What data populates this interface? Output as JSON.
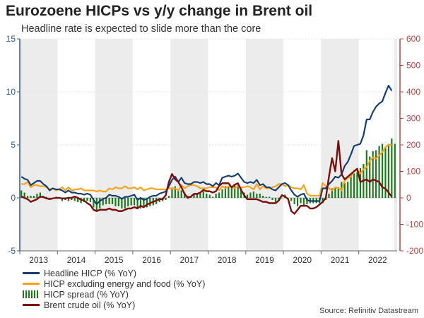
{
  "title": "Eurozoene HICPs vs y/y change in Brent oil",
  "subtitle": "Headline rate is expected to slide more than the core",
  "source": "Source: Refinitiv Datastream",
  "colors": {
    "headline": "#173e6d",
    "core": "#f7a21b",
    "spread": "#1f7a1f",
    "brent": "#7a0d0d",
    "left_axis": "#2f5d8a",
    "right_axis": "#b24848",
    "shade": "#ececec"
  },
  "chart_data": {
    "type": "line",
    "title": "Eurozoene HICPs vs y/y change in Brent oil",
    "x_start": "2013-01",
    "frequency": "monthly",
    "year_labels": [
      "2013",
      "2014",
      "2015",
      "2016",
      "2017",
      "2018",
      "2019",
      "2020",
      "2021",
      "2022"
    ],
    "shaded_years": [
      "2013",
      "2015",
      "2017",
      "2019",
      "2021"
    ],
    "left_axis": {
      "ylim": [
        -5,
        15
      ],
      "ticks": [
        -5,
        0,
        5,
        10,
        15
      ]
    },
    "right_axis": {
      "ylim": [
        -200,
        600
      ],
      "ticks": [
        -200,
        -100,
        0,
        100,
        200,
        300,
        400,
        500,
        600
      ]
    },
    "legend_position": "bottom-left",
    "series": [
      {
        "name": "Headline HICP (% YoY)",
        "axis": "left",
        "kind": "line",
        "values": [
          2.0,
          1.8,
          1.7,
          1.2,
          1.4,
          1.6,
          1.6,
          1.3,
          1.1,
          0.7,
          0.9,
          0.8,
          0.8,
          0.7,
          0.5,
          0.7,
          0.5,
          0.5,
          0.4,
          0.4,
          0.3,
          0.4,
          0.3,
          -0.2,
          -0.6,
          -0.3,
          -0.1,
          0.0,
          0.3,
          0.2,
          0.2,
          0.1,
          -0.1,
          0.1,
          0.1,
          0.2,
          0.3,
          -0.2,
          0.0,
          -0.2,
          -0.1,
          0.1,
          0.2,
          0.2,
          0.4,
          0.5,
          0.6,
          1.1,
          1.7,
          2.0,
          1.5,
          1.9,
          1.4,
          1.3,
          1.3,
          1.5,
          1.5,
          1.4,
          1.5,
          1.3,
          1.3,
          1.1,
          1.4,
          1.2,
          1.9,
          2.0,
          2.1,
          2.0,
          2.1,
          2.3,
          1.9,
          1.5,
          1.4,
          1.5,
          1.4,
          1.7,
          1.2,
          1.3,
          1.0,
          1.0,
          0.8,
          0.7,
          1.0,
          1.3,
          1.4,
          1.2,
          0.7,
          0.3,
          0.1,
          0.3,
          0.4,
          -0.2,
          -0.3,
          -0.3,
          -0.3,
          -0.3,
          0.9,
          0.9,
          1.3,
          1.6,
          2.0,
          1.9,
          2.2,
          3.0,
          3.4,
          4.1,
          4.9,
          5.0,
          5.1,
          5.9,
          7.4,
          7.4,
          8.1,
          8.6,
          8.9,
          9.1,
          9.9,
          10.6,
          10.1
        ]
      },
      {
        "name": "HICP excluding energy and food (% YoY)",
        "axis": "left",
        "kind": "line",
        "values": [
          1.3,
          1.3,
          1.5,
          1.0,
          1.2,
          1.2,
          1.1,
          1.1,
          1.0,
          0.8,
          0.9,
          0.7,
          0.8,
          1.0,
          0.7,
          1.0,
          0.7,
          0.8,
          0.8,
          0.9,
          0.7,
          0.7,
          0.7,
          0.7,
          0.6,
          0.7,
          0.6,
          0.6,
          0.9,
          0.8,
          1.0,
          0.9,
          0.9,
          1.1,
          0.9,
          0.9,
          1.0,
          0.8,
          1.0,
          0.7,
          0.8,
          0.9,
          0.9,
          0.8,
          0.8,
          0.8,
          0.8,
          0.9,
          0.9,
          0.9,
          0.7,
          1.2,
          0.9,
          1.1,
          1.2,
          1.2,
          1.1,
          0.9,
          0.9,
          0.9,
          1.0,
          1.0,
          1.0,
          0.7,
          1.1,
          0.9,
          1.1,
          1.0,
          0.9,
          1.1,
          1.0,
          1.0,
          1.1,
          1.0,
          0.8,
          1.3,
          0.8,
          1.1,
          0.9,
          0.9,
          1.0,
          1.1,
          1.3,
          1.3,
          1.1,
          1.2,
          1.0,
          0.9,
          0.9,
          0.8,
          1.2,
          0.4,
          0.2,
          0.2,
          0.2,
          0.2,
          1.4,
          1.1,
          0.9,
          0.7,
          1.0,
          0.9,
          0.7,
          1.6,
          1.9,
          2.0,
          2.6,
          2.6,
          2.3,
          2.7,
          2.9,
          3.5,
          3.8,
          3.7,
          4.0,
          4.3,
          4.8,
          5.0,
          5.0
        ]
      },
      {
        "name": "HICP spread (% YoY)",
        "axis": "left",
        "kind": "bar",
        "values": [
          0.7,
          0.5,
          0.2,
          0.2,
          0.2,
          0.4,
          0.5,
          0.2,
          0.1,
          -0.1,
          0.0,
          0.1,
          0.0,
          -0.3,
          -0.2,
          -0.3,
          -0.2,
          -0.3,
          -0.4,
          -0.5,
          -0.4,
          -0.3,
          -0.4,
          -0.9,
          -1.2,
          -1.0,
          -0.7,
          -0.6,
          -0.6,
          -0.6,
          -0.8,
          -0.8,
          -1.0,
          -1.0,
          -0.8,
          -0.7,
          -0.7,
          -1.0,
          -1.0,
          -0.9,
          -0.9,
          -0.8,
          -0.7,
          -0.6,
          -0.4,
          -0.3,
          -0.2,
          0.2,
          0.8,
          1.1,
          0.8,
          0.7,
          0.5,
          0.2,
          0.1,
          0.3,
          0.4,
          0.5,
          0.6,
          0.4,
          0.3,
          0.1,
          0.4,
          0.5,
          0.8,
          1.1,
          1.0,
          1.0,
          1.2,
          1.2,
          0.9,
          0.5,
          0.3,
          0.5,
          0.6,
          0.4,
          0.4,
          0.2,
          0.1,
          0.1,
          -0.2,
          -0.4,
          -0.3,
          0.0,
          0.3,
          0.0,
          -0.3,
          -0.6,
          -0.8,
          -0.5,
          -0.8,
          -0.6,
          -0.5,
          -0.5,
          -0.5,
          -0.5,
          -0.5,
          -0.2,
          0.4,
          0.9,
          1.0,
          1.0,
          1.5,
          1.4,
          1.5,
          2.1,
          2.3,
          2.4,
          2.8,
          3.2,
          4.5,
          3.9,
          4.4,
          4.5,
          4.9,
          5.1,
          4.8,
          5.1,
          5.6,
          5.1
        ]
      },
      {
        "name": "Brent crude oil (% YoY)",
        "axis": "right",
        "kind": "line",
        "values": [
          5,
          0,
          -5,
          -15,
          -10,
          -5,
          5,
          3,
          -2,
          -5,
          -2,
          0,
          0,
          -2,
          -2,
          0,
          0,
          5,
          0,
          -7,
          -10,
          -20,
          -27,
          -45,
          -50,
          -45,
          -45,
          -45,
          -40,
          -45,
          -45,
          -50,
          -50,
          -45,
          -40,
          -40,
          -35,
          -40,
          -30,
          -35,
          -25,
          -20,
          -15,
          -10,
          -5,
          -5,
          10,
          60,
          90,
          70,
          60,
          40,
          15,
          0,
          5,
          15,
          15,
          20,
          30,
          25,
          25,
          20,
          25,
          45,
          55,
          55,
          55,
          40,
          50,
          55,
          30,
          10,
          -5,
          -5,
          -5,
          -5,
          -10,
          -15,
          -15,
          -20,
          -20,
          -20,
          -10,
          10,
          5,
          -5,
          -50,
          -60,
          -45,
          -30,
          -30,
          -30,
          -40,
          -40,
          -35,
          -25,
          -15,
          0,
          80,
          150,
          100,
          215,
          90,
          70,
          80,
          90,
          100,
          110,
          60,
          65,
          70,
          60,
          70,
          65,
          60,
          40,
          35,
          20,
          5
        ]
      }
    ]
  },
  "legend": [
    "Headline HICP (% YoY)",
    "HICP excluding energy and food (% YoY)",
    "HICP spread (% YoY)",
    "Brent crude oil (% YoY)"
  ]
}
